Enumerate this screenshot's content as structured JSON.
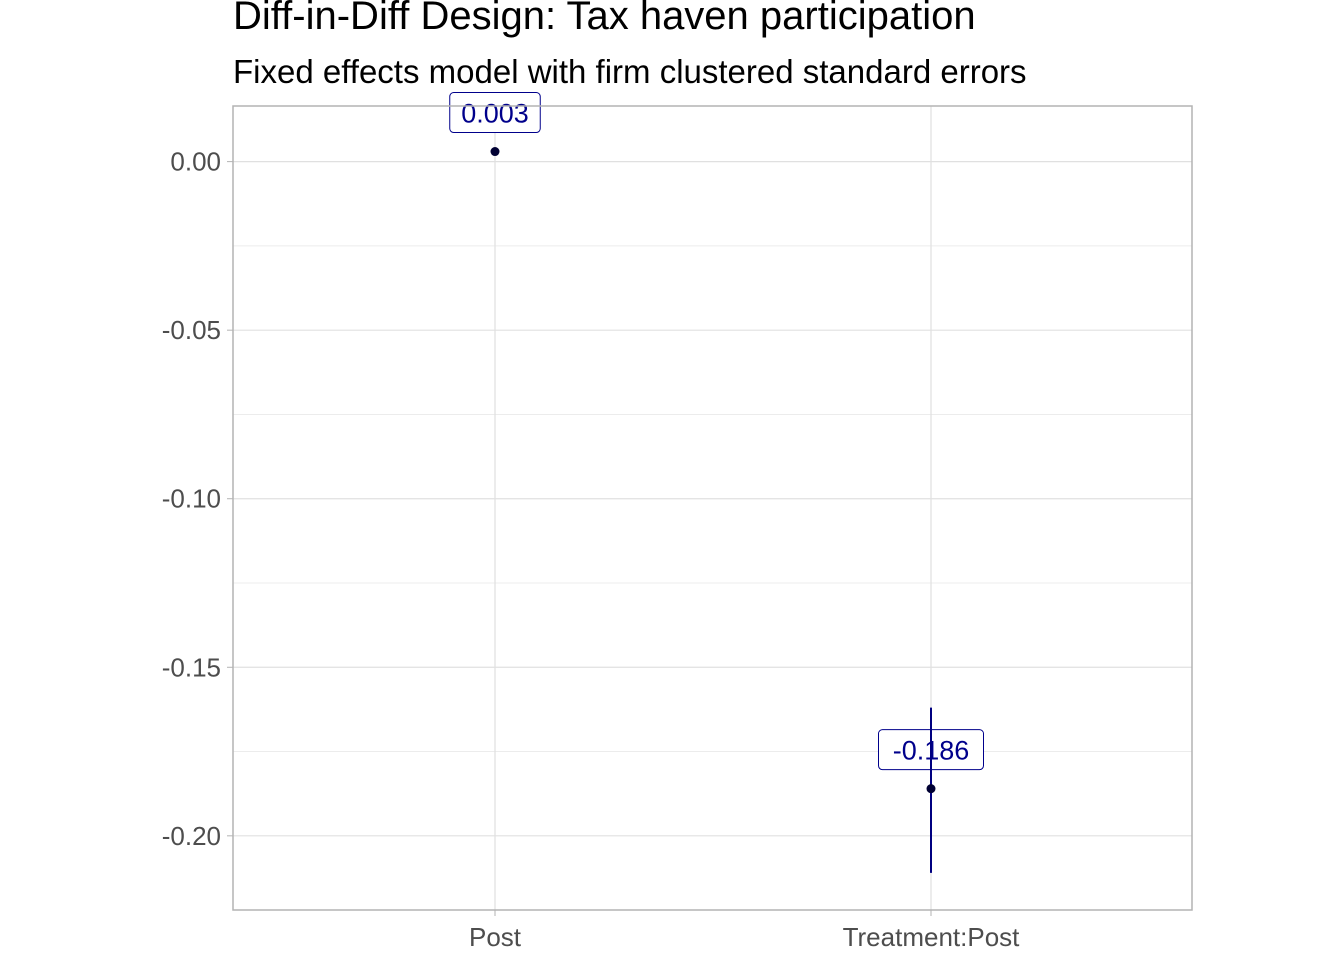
{
  "chart_data": {
    "type": "scatter",
    "title": "Diff-in-Diff Design: Tax haven participation",
    "subtitle": "Fixed effects model with firm clustered standard errors",
    "xlabel": "",
    "ylabel": "",
    "categories": [
      "Post",
      "Treatment:Post"
    ],
    "series": [
      {
        "points": [
          {
            "category": "Post",
            "estimate": 0.003,
            "ci_low": 0.002,
            "ci_high": 0.004,
            "label": "0.003"
          },
          {
            "category": "Treatment:Post",
            "estimate": -0.186,
            "ci_low": -0.211,
            "ci_high": -0.162,
            "label": "-0.186"
          }
        ]
      }
    ],
    "ylim": [
      -0.222,
      0.0165
    ],
    "y_ticks": [
      0.0,
      -0.05,
      -0.1,
      -0.15,
      -0.2
    ],
    "y_tick_labels": [
      "0.00",
      "-0.05",
      "-0.10",
      "-0.15",
      "-0.20"
    ],
    "grid": true,
    "legend": "none",
    "colors": {
      "point": "#000033",
      "interval": "#000080",
      "label_text": "#00008B",
      "label_border": "#00008B",
      "grid": "#e0e0e0",
      "panel_border": "#b3b3b3",
      "tick_text": "#4d4d4d"
    }
  }
}
